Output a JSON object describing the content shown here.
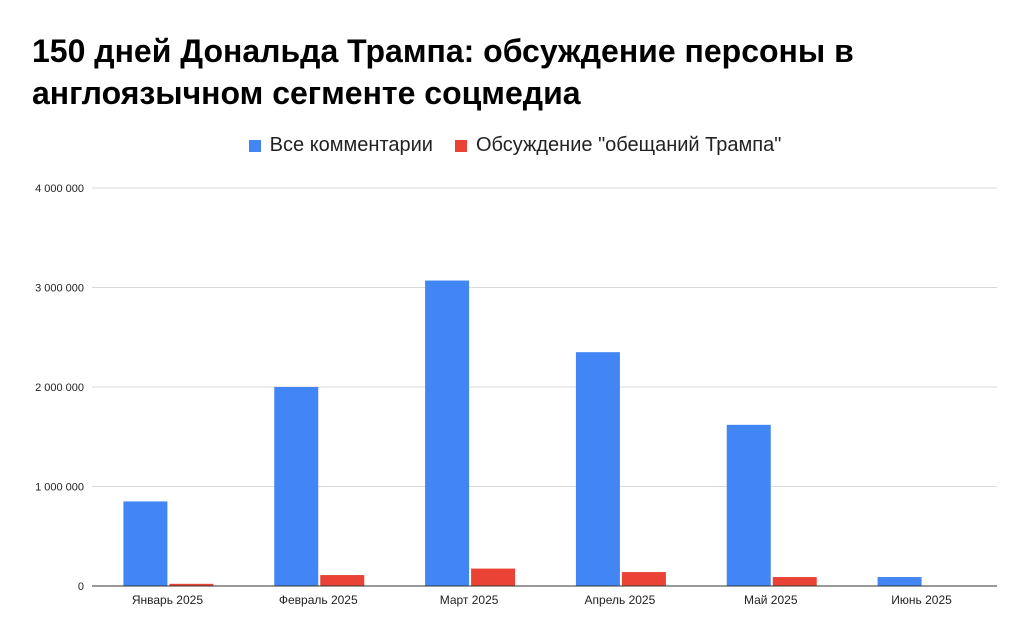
{
  "chart_data": {
    "type": "bar",
    "title": "150 дней Дональда Трампа: обсуждение персоны в англоязычном сегменте соцмедиа",
    "categories": [
      "Январь 2025",
      "Февраль 2025",
      "Март 2025",
      "Апрель 2025",
      "Май 2025",
      "Июнь 2025"
    ],
    "series": [
      {
        "name": "Все комментарии",
        "color": "#4285f4",
        "values": [
          850000,
          2000000,
          3070000,
          2350000,
          1620000,
          90000
        ]
      },
      {
        "name": "Обсуждение \"обещаний Трампа\"",
        "color": "#ea4335",
        "values": [
          22000,
          110000,
          175000,
          140000,
          90000,
          5000
        ]
      }
    ],
    "ylim": [
      0,
      4000000
    ],
    "yticks": [
      {
        "value": 0,
        "label": "0"
      },
      {
        "value": 1000000,
        "label": "1 000 000"
      },
      {
        "value": 2000000,
        "label": "2 000 000"
      },
      {
        "value": 3000000,
        "label": "3 000 000"
      },
      {
        "value": 4000000,
        "label": "4 000 000"
      }
    ],
    "grid": true,
    "legend_position": "top-center",
    "xlabel": "",
    "ylabel": ""
  }
}
